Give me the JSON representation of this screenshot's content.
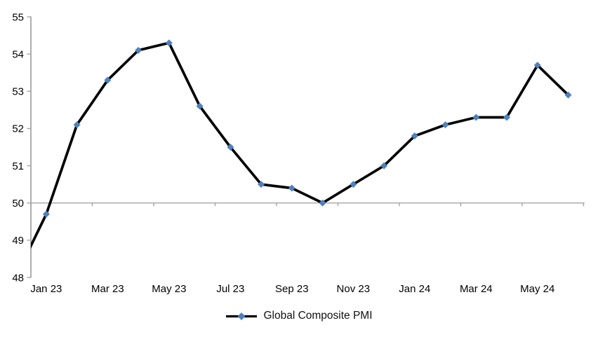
{
  "chart_data": {
    "type": "line",
    "title": "",
    "categories": [
      "Jan 23",
      "Feb 23",
      "Mar 23",
      "Apr 23",
      "May 23",
      "Jun 23",
      "Jul 23",
      "Aug 23",
      "Sep 23",
      "Oct 23",
      "Nov 23",
      "Dec 23",
      "Jan 24",
      "Feb 24",
      "Mar 24",
      "Apr 24",
      "May 24",
      "Jun 24"
    ],
    "series": [
      {
        "name": "Global Composite PMI",
        "values": [
          49.7,
          52.1,
          53.3,
          54.1,
          54.3,
          52.6,
          51.5,
          50.5,
          50.4,
          50.0,
          50.5,
          51.0,
          51.8,
          52.1,
          52.3,
          52.3,
          53.7,
          52.9
        ],
        "marker": "diamond"
      }
    ],
    "lead_in_point": {
      "category": "Dec 22",
      "value": 48.0,
      "clipped_at_left_edge": true
    },
    "x_axis": {
      "tick_labels": [
        "Jan 23",
        "Mar 23",
        "May 23",
        "Jul 23",
        "Sep 23",
        "Nov 23",
        "Jan 24",
        "Mar 24",
        "May 24"
      ],
      "label_every_n_categories": 2,
      "axis_crosses_at": 50
    },
    "y_axis": {
      "min": 48,
      "max": 55,
      "step": 1,
      "tick_labels": [
        "48",
        "49",
        "50",
        "51",
        "52",
        "53",
        "54",
        "55"
      ]
    },
    "grid": "off",
    "legend_position": "bottom-center",
    "colors": {
      "line": "#000000",
      "marker": "#4F81BD",
      "axis": "#A5A5A5",
      "text": "#000000"
    }
  },
  "legend": {
    "label": "Global Composite PMI"
  }
}
